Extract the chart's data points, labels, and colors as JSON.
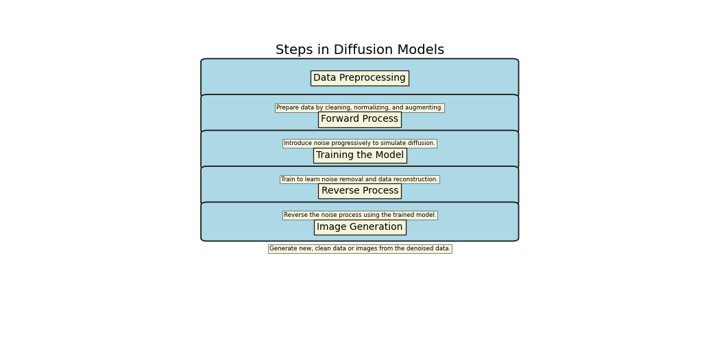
{
  "title": "Steps in Diffusion Models",
  "title_fontsize": 14,
  "background_color": "#ffffff",
  "box_fill_color": "#add8e6",
  "box_edge_color": "#1a1a1a",
  "label_fill_color": "#f5f5dc",
  "label_edge_color": "#666666",
  "arrow_color": "#000000",
  "steps": [
    {
      "title": "Data Preprocessing",
      "description": "Prepare data by cleaning, normalizing, and augmenting."
    },
    {
      "title": "Forward Process",
      "description": "Introduce noise progressively to simulate diffusion."
    },
    {
      "title": "Training the Model",
      "description": "Train to learn noise removal and data reconstruction."
    },
    {
      "title": "Reverse Process",
      "description": "Reverse the noise process using the trained model."
    },
    {
      "title": "Image Generation",
      "description": "Generate new, clean data or images from the denoised data."
    }
  ],
  "fig_width": 10.24,
  "fig_height": 4.97,
  "dpi": 100
}
